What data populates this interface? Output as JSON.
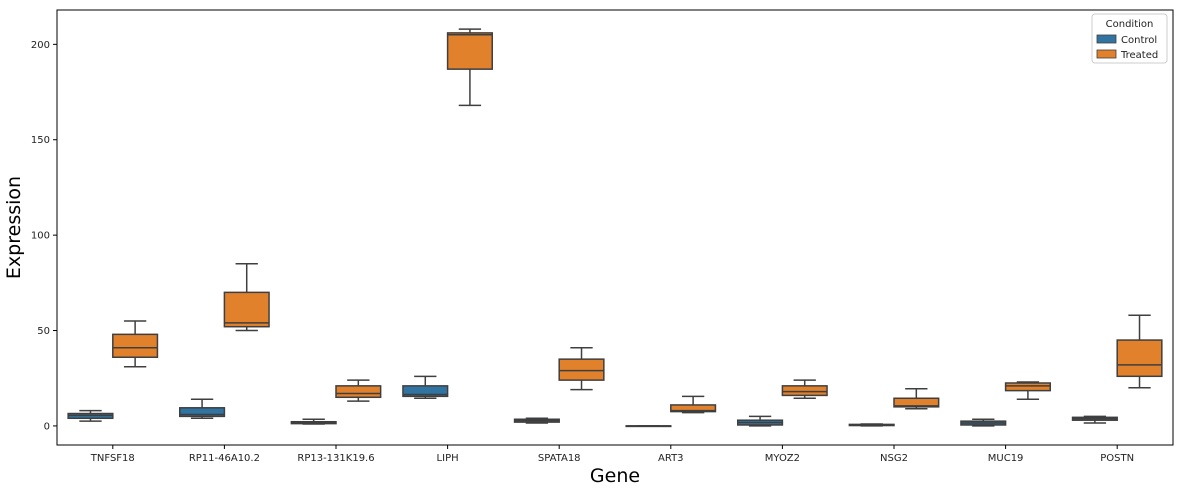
{
  "chart_data": {
    "type": "box",
    "xlabel": "Gene",
    "ylabel": "Expression",
    "ylim": [
      -10,
      218
    ],
    "yticks": [
      0,
      50,
      100,
      150,
      200
    ],
    "grid": false,
    "legend": {
      "title": "Condition",
      "position": "top-right"
    },
    "categories": [
      "TNFSF18",
      "RP11-46A10.2",
      "RP13-131K19.6",
      "LIPH",
      "SPATA18",
      "ART3",
      "MYOZ2",
      "NSG2",
      "MUC19",
      "POSTN"
    ],
    "series": [
      {
        "name": "Control",
        "color": "#3274a1",
        "boxes": [
          {
            "min": 2.5,
            "q1": 4,
            "median": 5.5,
            "q3": 6.5,
            "max": 8
          },
          {
            "min": 4,
            "q1": 5,
            "median": 6,
            "q3": 9.5,
            "max": 14
          },
          {
            "min": 1,
            "q1": 1.2,
            "median": 1.7,
            "q3": 2.2,
            "max": 3.5
          },
          {
            "min": 14.5,
            "q1": 15.5,
            "median": 16.5,
            "q3": 21,
            "max": 26
          },
          {
            "min": 1.5,
            "q1": 2,
            "median": 2.8,
            "q3": 3.5,
            "max": 4
          },
          {
            "min": 0,
            "q1": 0,
            "median": 0,
            "q3": 0,
            "max": 0
          },
          {
            "min": 0,
            "q1": 0.5,
            "median": 1.8,
            "q3": 3,
            "max": 5
          },
          {
            "min": 0,
            "q1": 0.2,
            "median": 0.5,
            "q3": 0.8,
            "max": 1
          },
          {
            "min": 0,
            "q1": 0.5,
            "median": 1.5,
            "q3": 2.5,
            "max": 3.5
          },
          {
            "min": 1.5,
            "q1": 3,
            "median": 3.8,
            "q3": 4.5,
            "max": 5
          }
        ]
      },
      {
        "name": "Treated",
        "color": "#e1812c",
        "boxes": [
          {
            "min": 31,
            "q1": 36,
            "median": 41,
            "q3": 48,
            "max": 55
          },
          {
            "min": 50,
            "q1": 52,
            "median": 54,
            "q3": 70,
            "max": 85
          },
          {
            "min": 13,
            "q1": 15,
            "median": 17,
            "q3": 21,
            "max": 24
          },
          {
            "min": 168,
            "q1": 187,
            "median": 205,
            "q3": 206,
            "max": 208
          },
          {
            "min": 19,
            "q1": 24,
            "median": 29,
            "q3": 35,
            "max": 41
          },
          {
            "min": 7,
            "q1": 7.5,
            "median": 8,
            "q3": 11,
            "max": 15.5
          },
          {
            "min": 14.5,
            "q1": 16,
            "median": 18,
            "q3": 21,
            "max": 24
          },
          {
            "min": 9,
            "q1": 10,
            "median": 10.5,
            "q3": 14.5,
            "max": 19.5
          },
          {
            "min": 14,
            "q1": 18.5,
            "median": 21,
            "q3": 22.5,
            "max": 23
          }
        ]
      }
    ],
    "postn_treated": {
      "min": 20,
      "q1": 26,
      "median": 32,
      "q3": 45,
      "max": 58
    }
  }
}
